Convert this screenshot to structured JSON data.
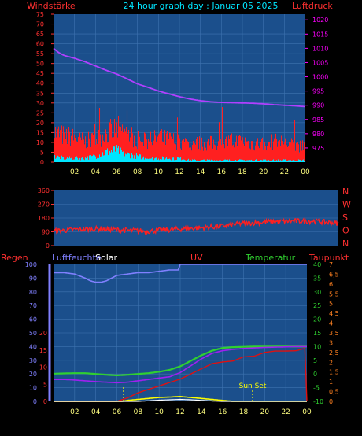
{
  "header": {
    "left_label": "Windstärke",
    "title": "24 hour graph day : Januar 05 2025",
    "right_label": "Luftdruck"
  },
  "colors": {
    "background": "#000000",
    "plot_bg": "#1b4f8c",
    "grid": "#3f73b0",
    "wind_gust": "#ff2020",
    "wind_avg": "#00e5ff",
    "pressure": "#b040ff",
    "direction": "#ff2020",
    "rain": "#e01010",
    "humidity": "#8080ff",
    "solar": "#ffffff",
    "uv": "#ffff00",
    "temperature": "#30d030",
    "dewpoint": "#a020f0",
    "left_axis": "#ff3030",
    "pressure_axis": "#ff00ff",
    "x_labels": "#ffff80"
  },
  "x_ticks": [
    "02",
    "04",
    "06",
    "08",
    "10",
    "12",
    "14",
    "16",
    "18",
    "20",
    "22",
    "00"
  ],
  "panel1": {
    "wind_ticks": [
      "0",
      "5",
      "10",
      "15",
      "20",
      "25",
      "30",
      "35",
      "40",
      "45",
      "50",
      "55",
      "60",
      "65",
      "70",
      "75"
    ],
    "pressure_ticks": [
      "975",
      "980",
      "985",
      "990",
      "995",
      "1000",
      "1005",
      "1010",
      "1015",
      "1020"
    ]
  },
  "panel2": {
    "dir_ticks": [
      "0",
      "90",
      "180",
      "270",
      "360"
    ],
    "compass": [
      "N",
      "W",
      "S",
      "O",
      "N"
    ]
  },
  "panel3": {
    "labels": {
      "rain": "Regen",
      "humidity": "Luftfeuchte",
      "solar": "Solar",
      "uv": "UV",
      "temperature": "Temperatur",
      "dewpoint": "Taupunkt"
    },
    "humidity_ticks": [
      "0",
      "10",
      "20",
      "30",
      "40",
      "50",
      "60",
      "70",
      "80",
      "90",
      "100"
    ],
    "rain_ticks": [
      "0",
      "5",
      "10",
      "15",
      "20"
    ],
    "temp_ticks": [
      "-10",
      "-5",
      "0",
      "5",
      "10",
      "15",
      "20",
      "25",
      "30",
      "35",
      "40"
    ],
    "uv_ticks": [
      "0",
      "0,5",
      "1",
      "1,5",
      "2",
      "2,5",
      "3",
      "3,5",
      "4",
      "4,5",
      "5",
      "5,5",
      "6",
      "6,5",
      "7"
    ],
    "annotation": "Sun Set"
  },
  "chart_data": [
    {
      "type": "line",
      "title": "24 hour graph day : Januar 05 2025",
      "xlabel": "",
      "x_unit": "hour of day",
      "xlim": [
        0,
        24
      ],
      "ylabel_left": "Windstärke",
      "ylim_left": [
        0,
        75
      ],
      "ylabel_right": "Luftdruck",
      "ylim_right": [
        970,
        1022
      ],
      "series": [
        {
          "name": "Luftdruck",
          "axis": "right",
          "x": [
            0,
            0.5,
            1,
            2,
            3,
            4,
            5,
            6,
            7,
            8,
            9,
            10,
            11,
            12,
            13,
            14,
            15,
            16,
            17,
            18,
            19,
            20,
            21,
            22,
            23,
            24
          ],
          "values": [
            1010,
            1008.5,
            1007.5,
            1006.5,
            1005.3,
            1003.8,
            1002.3,
            1001,
            999.3,
            997.5,
            996.3,
            995,
            994,
            993,
            992.2,
            991.6,
            991.2,
            991,
            990.9,
            990.8,
            990.7,
            990.5,
            990.2,
            990,
            989.8,
            989.5
          ]
        }
      ],
      "wind_gust_profile": {
        "x": [
          0,
          1,
          2,
          3,
          4,
          5,
          6,
          7,
          8,
          9,
          10,
          11,
          12,
          13,
          14,
          15,
          16,
          17,
          18,
          19,
          20,
          21,
          22,
          23,
          24
        ],
        "values": [
          16,
          14,
          13,
          11,
          12,
          15,
          18,
          15,
          12,
          11,
          13,
          12,
          11,
          10,
          10,
          10,
          10,
          11,
          11,
          10,
          10,
          11,
          10,
          9,
          8
        ]
      },
      "wind_avg_profile": {
        "x": [
          0,
          1,
          2,
          3,
          4,
          5,
          6,
          7,
          8,
          9,
          10,
          11,
          12,
          13,
          14,
          15,
          16,
          17,
          18,
          19,
          20,
          21,
          22,
          23,
          24
        ],
        "values": [
          3,
          2,
          2,
          2,
          3,
          5,
          6,
          4,
          3,
          2,
          2,
          2,
          2,
          1,
          1,
          1,
          1,
          1,
          1,
          1,
          1,
          1,
          1,
          1,
          1
        ]
      }
    },
    {
      "type": "line",
      "title": "",
      "ylabel_right": "",
      "ylim": [
        0,
        360
      ],
      "series": [
        {
          "name": "",
          "x": [
            0,
            2,
            4,
            6,
            8,
            10,
            12,
            14,
            16,
            18,
            20,
            22,
            24
          ],
          "values": [
            95,
            105,
            110,
            100,
            95,
            105,
            115,
            125,
            145,
            155,
            160,
            160,
            145
          ]
        }
      ]
    },
    {
      "type": "line",
      "title": "",
      "xlim": [
        0,
        24
      ],
      "axes": {
        "humidity": [
          0,
          100
        ],
        "rain": [
          0,
          20
        ],
        "temperature": [
          -10,
          40
        ],
        "uv": [
          0,
          7
        ]
      },
      "series": [
        {
          "name": "Luftfeuchte",
          "axis": "humidity",
          "x": [
            0,
            1,
            2,
            3,
            3.5,
            4,
            4.5,
            5,
            6,
            7,
            8,
            9,
            10,
            11,
            11.8,
            12,
            13,
            14,
            15,
            16,
            17,
            18,
            19,
            20,
            21,
            22,
            23,
            24
          ],
          "values": [
            94,
            94,
            93,
            90,
            88,
            87,
            87,
            88,
            92,
            93,
            94,
            94,
            95,
            96,
            96,
            100,
            100,
            100,
            100,
            100,
            100,
            100,
            100,
            100,
            100,
            100,
            100,
            100
          ]
        },
        {
          "name": "Temperatur",
          "axis": "temperature",
          "x": [
            0,
            1,
            2,
            3,
            4,
            5,
            6,
            7,
            8,
            9,
            10,
            11,
            12,
            13,
            14,
            15,
            16,
            17,
            18,
            19,
            20,
            21,
            22,
            23,
            24
          ],
          "values": [
            0.1,
            0.2,
            0.3,
            0.3,
            0,
            -0.3,
            -0.5,
            -0.3,
            0,
            0.3,
            0.8,
            1.5,
            2.8,
            4.8,
            6.8,
            8.5,
            9.5,
            9.8,
            9.9,
            10,
            10,
            10,
            10,
            10,
            10
          ]
        },
        {
          "name": "Taupunkt",
          "axis": "temperature",
          "x": [
            0,
            1,
            2,
            3,
            4,
            5,
            6,
            7,
            8,
            9,
            10,
            11,
            12,
            13,
            14,
            15,
            16,
            17,
            18,
            19,
            20,
            21,
            22,
            23,
            24
          ],
          "values": [
            -2,
            -2,
            -2.2,
            -2.5,
            -2.8,
            -3,
            -3.2,
            -3,
            -2.5,
            -2,
            -1.5,
            -1,
            0.5,
            3,
            5.5,
            7.5,
            8.5,
            9,
            9.3,
            9.5,
            9.7,
            9.8,
            9.9,
            10,
            10
          ]
        },
        {
          "name": "Regen",
          "axis": "rain",
          "x": [
            0,
            6,
            7,
            8,
            9,
            10,
            11,
            12,
            13,
            14,
            15,
            16,
            17,
            18,
            19,
            20,
            21,
            22,
            23,
            23.8,
            24
          ],
          "values": [
            0,
            0,
            1,
            2.5,
            3.5,
            4.5,
            5.5,
            6.5,
            8,
            9.5,
            11,
            11.5,
            11.8,
            13,
            13.2,
            14.3,
            14.7,
            14.7,
            14.8,
            15.5,
            0
          ]
        },
        {
          "name": "UV",
          "axis": "uv",
          "x": [
            0,
            6.5,
            7,
            8,
            9,
            10,
            11,
            12,
            13,
            14,
            15,
            16,
            17,
            24
          ],
          "values": [
            0,
            0,
            0.05,
            0.1,
            0.15,
            0.2,
            0.22,
            0.25,
            0.2,
            0.15,
            0.1,
            0.05,
            0,
            0
          ]
        },
        {
          "name": "Solar",
          "axis": "uv",
          "x": [
            0,
            8,
            9,
            10,
            11,
            12,
            13,
            14,
            15,
            16,
            24
          ],
          "values": [
            0,
            0,
            0.03,
            0.06,
            0.08,
            0.1,
            0.08,
            0.05,
            0.02,
            0,
            0
          ]
        }
      ]
    }
  ]
}
